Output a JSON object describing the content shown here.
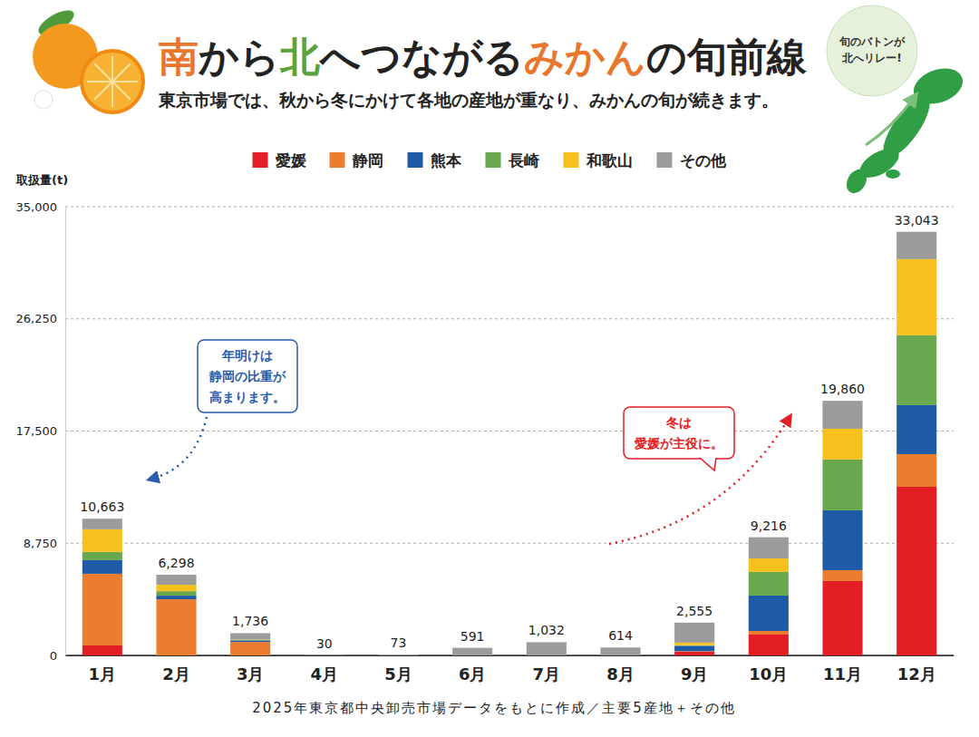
{
  "chart_data": {
    "type": "bar",
    "stacked": true,
    "title_parts": [
      {
        "text": "南",
        "color": "#e8762d"
      },
      {
        "text": "から",
        "color": "#222222"
      },
      {
        "text": "北",
        "color": "#5aa33c"
      },
      {
        "text": "へつながる",
        "color": "#222222"
      },
      {
        "text": "みかん",
        "color": "#e8762d"
      },
      {
        "text": "の旬前線",
        "color": "#222222"
      }
    ],
    "subtitle": "東京市場では、秋から冬にかけて各地の産地が重なり、みかんの旬が続きます。",
    "badge": [
      "旬のバトンが",
      "北へリレー!"
    ],
    "y_label": "取扱量(t)",
    "source": "2025年東京都中央卸売市場データをもとに作成／主要5産地＋その他",
    "categories": [
      "1月",
      "2月",
      "3月",
      "4月",
      "5月",
      "6月",
      "7月",
      "8月",
      "9月",
      "10月",
      "11月",
      "12月"
    ],
    "series": [
      {
        "name": "愛媛",
        "color": "#e31e24",
        "values": [
          780,
          0,
          0,
          0,
          0,
          0,
          0,
          0,
          280,
          1630,
          5800,
          13150
        ]
      },
      {
        "name": "静岡",
        "color": "#ec7c30",
        "values": [
          5590,
          4380,
          1050,
          0,
          0,
          0,
          0,
          0,
          50,
          280,
          850,
          2550
        ]
      },
      {
        "name": "熊本",
        "color": "#1f5aa6",
        "values": [
          1060,
          280,
          120,
          0,
          0,
          0,
          0,
          0,
          420,
          2760,
          4670,
          3820
        ]
      },
      {
        "name": "長崎",
        "color": "#6aa84f",
        "values": [
          640,
          350,
          40,
          0,
          0,
          0,
          0,
          0,
          50,
          1840,
          3960,
          5450
        ]
      },
      {
        "name": "和歌山",
        "color": "#f6c11d",
        "values": [
          1770,
          500,
          30,
          0,
          0,
          0,
          0,
          0,
          200,
          1060,
          2400,
          5940
        ]
      },
      {
        "name": "その他",
        "color": "#9b9b9b",
        "values": [
          823,
          788,
          496,
          30,
          73,
          591,
          1032,
          614,
          1555,
          1646,
          2180,
          2133
        ]
      }
    ],
    "totals": [
      10663,
      6298,
      1736,
      30,
      73,
      591,
      1032,
      614,
      2555,
      9216,
      19860,
      33043
    ],
    "total_labels": [
      "10,663",
      "6,298",
      "1,736",
      "30",
      "73",
      "591",
      "1,032",
      "614",
      "2,555",
      "9,216",
      "19,860",
      "33,043"
    ],
    "data_labels": true,
    "ylim": [
      0,
      35000
    ],
    "yticks": [
      0,
      {
        "value": 8750,
        "label": "8,750"
      },
      {
        "value": 17500,
        "label": "17,500"
      },
      {
        "value": 26250,
        "label": "26,250"
      },
      {
        "value": 35000,
        "label": "35,000"
      }
    ],
    "grid": true,
    "legend": "top",
    "annotations": [
      {
        "lines": [
          "年明けは",
          "静岡の比重が",
          "高まります。"
        ],
        "color": "#2a5caa"
      },
      {
        "lines": [
          "冬は",
          "愛媛が主役に。"
        ],
        "color": "#e31e24"
      }
    ]
  }
}
